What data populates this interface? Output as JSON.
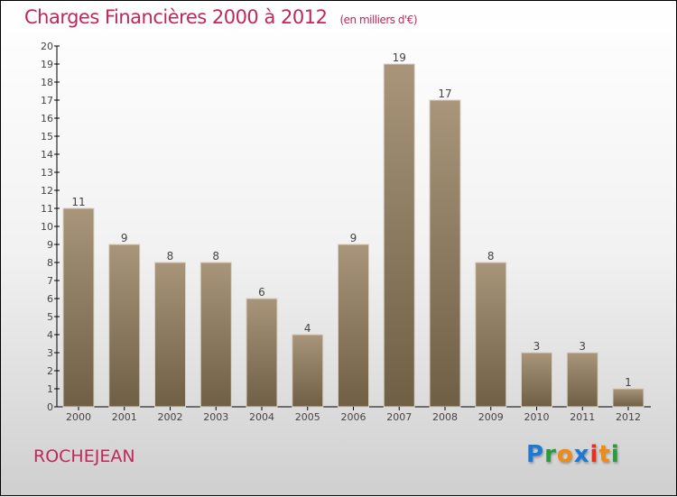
{
  "title": "Charges Financières 2000 à 2012",
  "unit": "(en milliers d'€)",
  "city": "ROCHEJEAN",
  "logo": "Proxiti",
  "colors": {
    "bar_top": "#a8957a",
    "bar_bottom": "#6f5f45",
    "title": "#c0275c"
  },
  "chart_data": {
    "type": "bar",
    "title": "Charges Financières 2000 à 2012",
    "ylabel": "(en milliers d'€)",
    "categories": [
      "2000",
      "2001",
      "2002",
      "2003",
      "2004",
      "2005",
      "2006",
      "2007",
      "2008",
      "2009",
      "2010",
      "2011",
      "2012"
    ],
    "values": [
      11,
      9,
      8,
      8,
      6,
      4,
      9,
      19,
      17,
      8,
      3,
      3,
      1
    ],
    "ylim": [
      0,
      20
    ],
    "yticks": [
      0,
      1,
      2,
      3,
      4,
      5,
      6,
      7,
      8,
      9,
      10,
      11,
      12,
      13,
      14,
      15,
      16,
      17,
      18,
      19,
      20
    ]
  }
}
